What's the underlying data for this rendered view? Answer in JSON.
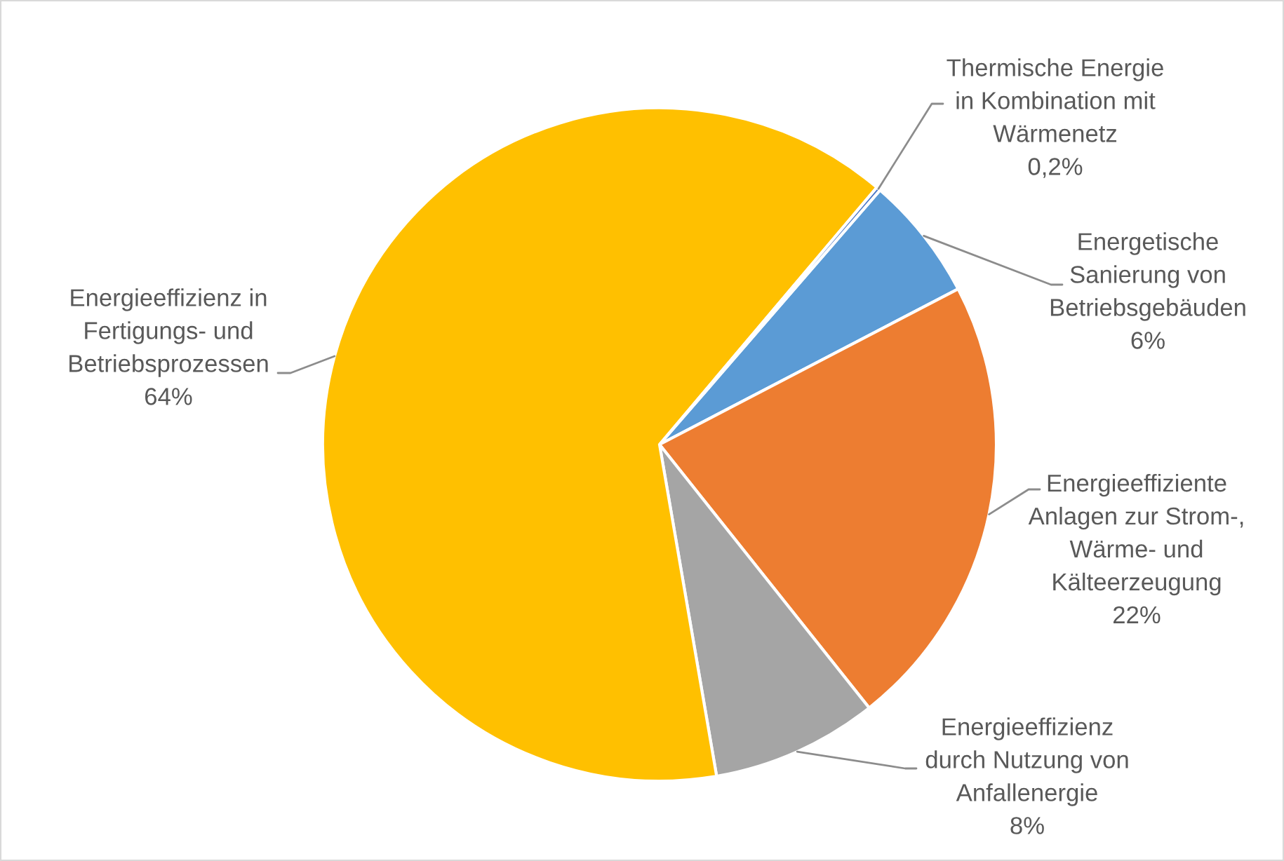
{
  "chart_data": {
    "type": "pie",
    "categories": [
      "Energetische\nSanierung von\nBetriebsgebäuden",
      "Energieeffiziente\nAnlagen zur Strom-,\nWärme- und\nKälteerzeugung",
      "Energieeffizienz\ndurch Nutzung von\nAnfallenergie",
      "Energieeffizienz in\nFertigungs- und\nBetriebsprozessen",
      "Thermische Energie\nin Kombination mit\nWärmenetz"
    ],
    "values": [
      6,
      22,
      8,
      64,
      0.2
    ],
    "value_labels": [
      "6%",
      "22%",
      "8%",
      "64%",
      "0,2%"
    ],
    "colors": [
      "#5b9bd5",
      "#ed7d31",
      "#a5a5a5",
      "#ffc000",
      "#4472c4"
    ]
  }
}
